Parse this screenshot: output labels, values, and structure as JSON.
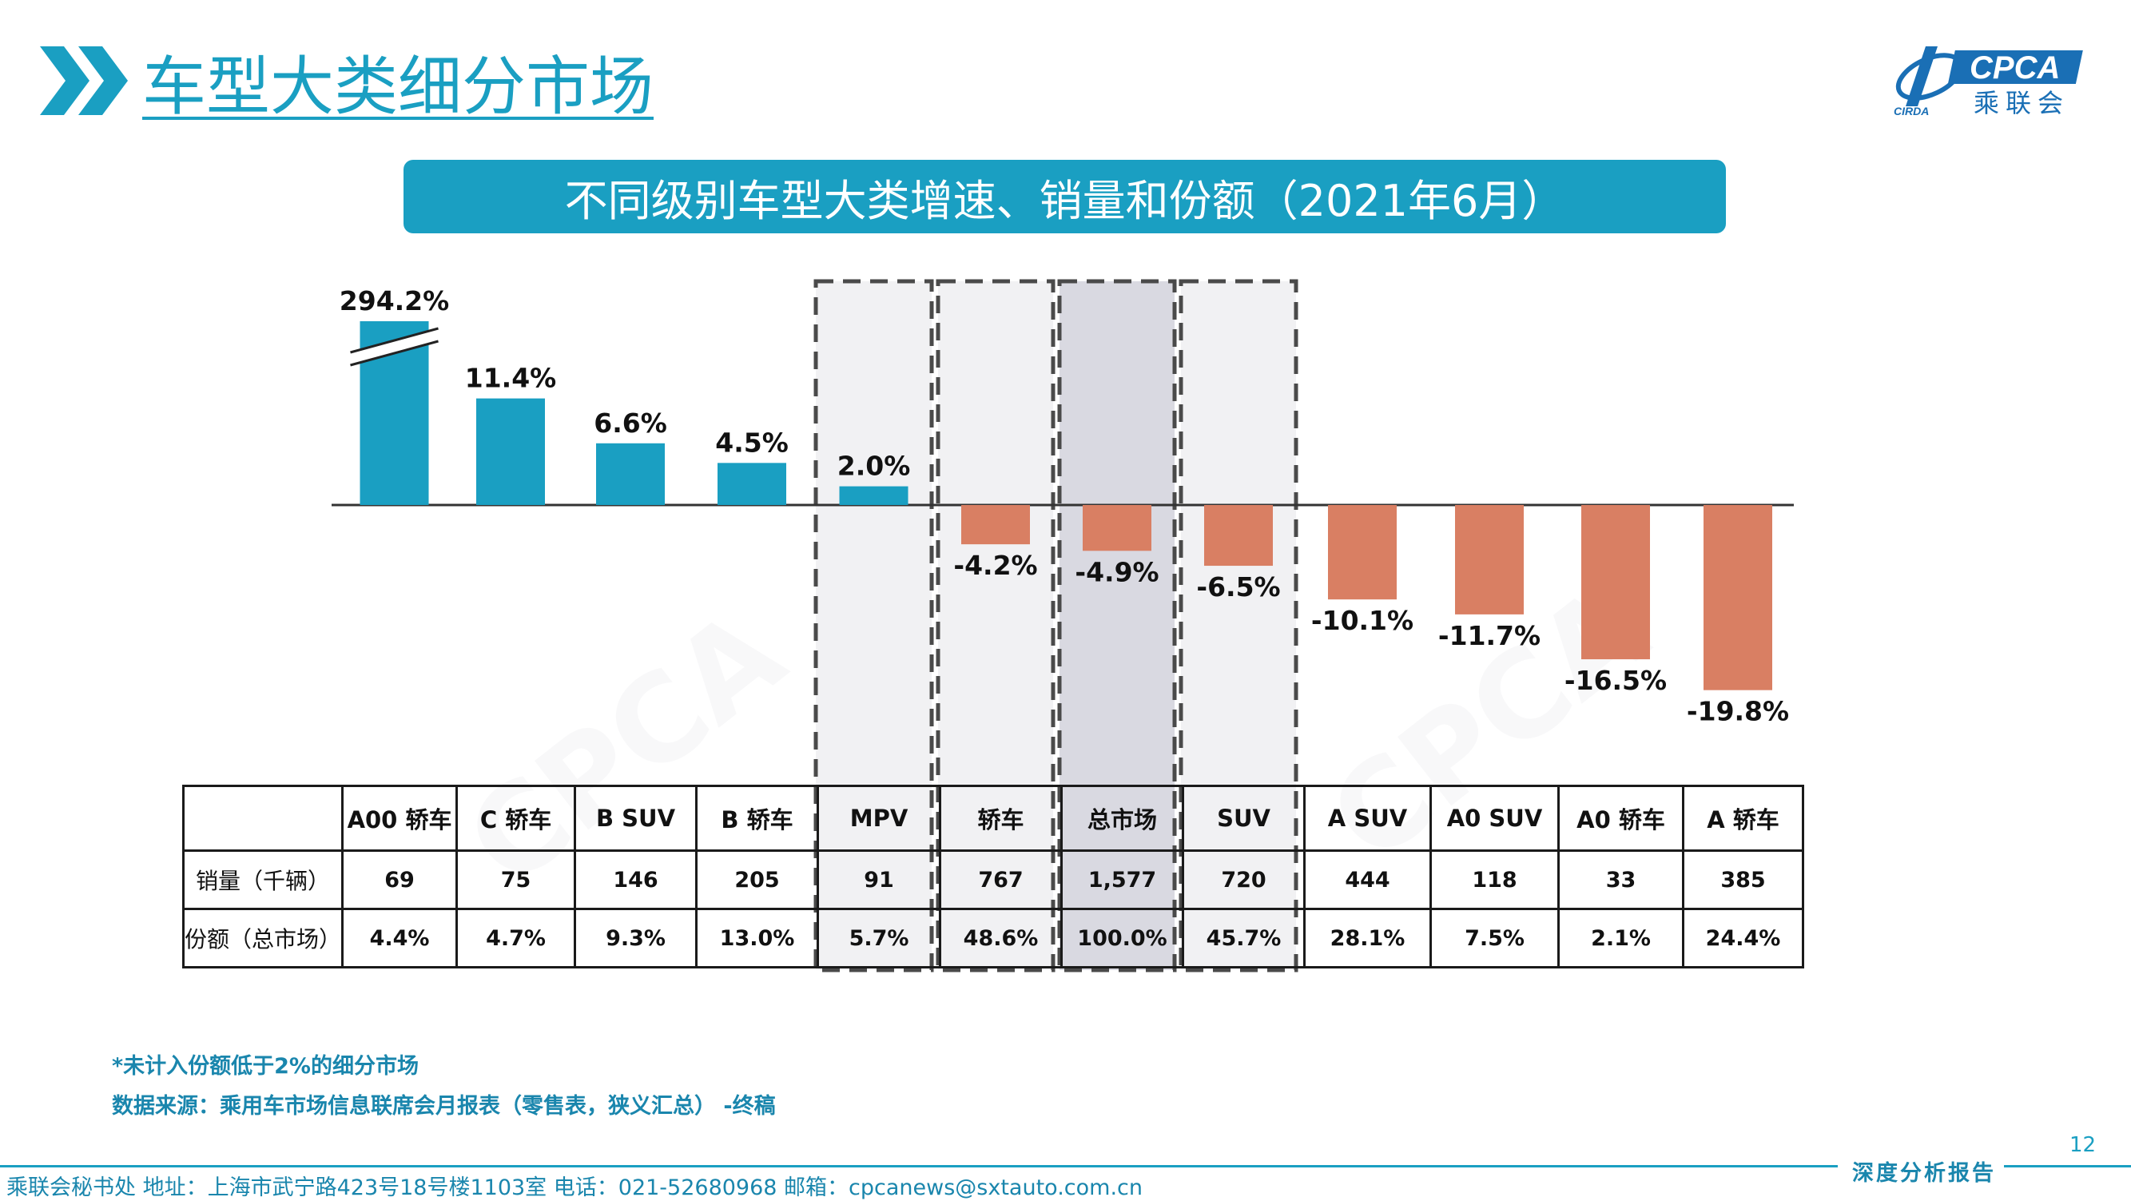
{
  "header": {
    "title": "车型大类细分市场",
    "logo_text": "CPCA",
    "logo_subtext": "乘联会",
    "logo_mark": "CPCA"
  },
  "banner": {
    "text": "不同级别车型大类增速、销量和份额（2021年6月）"
  },
  "chart_data": {
    "type": "bar",
    "title": "不同级别车型大类增速、销量和份额（2021年6月）",
    "categories": [
      "A00 轿车",
      "C 轿车",
      "B SUV",
      "B 轿车",
      "MPV",
      "轿车",
      "总市场",
      "SUV",
      "A SUV",
      "A0 SUV",
      "A0 轿车",
      "A 轿车"
    ],
    "values": [
      294.2,
      11.4,
      6.6,
      4.5,
      2.0,
      -4.2,
      -4.9,
      -6.5,
      -10.1,
      -11.7,
      -16.5,
      -19.8
    ],
    "value_labels": [
      "294.2%",
      "11.4%",
      "6.6%",
      "4.5%",
      "2.0%",
      "-4.2%",
      "-4.9%",
      "-6.5%",
      "-10.1%",
      "-11.7%",
      "-16.5%",
      "-19.8%"
    ],
    "axis_break_on": "A00 轿车",
    "highlighted": [
      "MPV",
      "轿车",
      "总市场",
      "SUV"
    ],
    "colors": {
      "positive": "#1a9fc2",
      "negative": "#d97f63",
      "highlight_box": "#f1f1f3",
      "total_box": "#d9d9e1"
    }
  },
  "table": {
    "header_label": "",
    "rows": [
      {
        "label": "销量（千辆）",
        "values": [
          "69",
          "75",
          "146",
          "205",
          "91",
          "767",
          "1,577",
          "720",
          "444",
          "118",
          "33",
          "385"
        ]
      },
      {
        "label": "份额（总市场）",
        "values": [
          "4.4%",
          "4.7%",
          "9.3%",
          "13.0%",
          "5.7%",
          "48.6%",
          "100.0%",
          "45.7%",
          "28.1%",
          "7.5%",
          "2.1%",
          "24.4%"
        ]
      }
    ]
  },
  "notes": {
    "note1": "*未计入份额低于2%的细分市场",
    "note2": "数据来源：乘用车市场信息联席会月报表（零售表，狭义汇总） -终稿"
  },
  "footer": {
    "page_number": "12",
    "report_label": "深度分析报告",
    "contact": "乘联会秘书处   地址：上海市武宁路423号18号楼1103室   电话：021-52680968   邮箱：cpcanews@sxtauto.com.cn"
  }
}
